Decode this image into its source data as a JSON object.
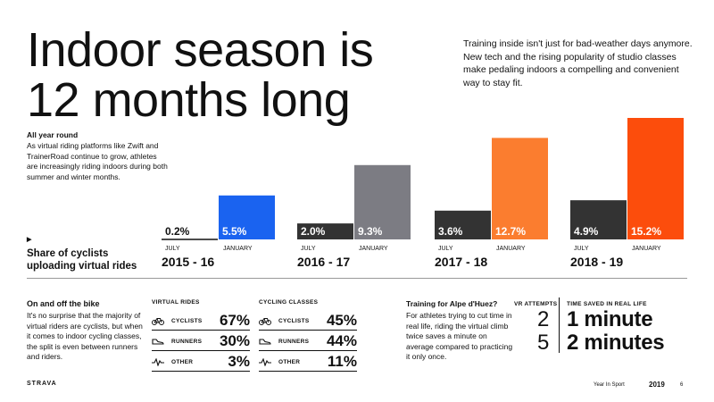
{
  "title_line1": "Indoor season is",
  "title_line2": "12 months long",
  "intro": "Training inside isn't just for bad-weather days anymore. New tech and the rising popularity of studio classes make pedaling indoors a compelling and convenient way to stay fit.",
  "all_year_heading": "All year round",
  "all_year_body": "As virtual riding platforms like Zwift and TrainerRoad continue to grow, athletes are increasingly riding indoors during both summer and winter months.",
  "share_marker": "▶",
  "share_label_line1": "Share of cyclists",
  "share_label_line2": "uploading virtual rides",
  "chart_data": {
    "type": "bar",
    "categories": [
      "2015 - 16",
      "2016 - 17",
      "2017 - 18",
      "2018 - 19"
    ],
    "bar_labels": [
      "JULY",
      "JANUARY"
    ],
    "series": [
      {
        "name": "JULY",
        "values": [
          0.2,
          2.0,
          3.6,
          4.9
        ],
        "labels": [
          "0.2%",
          "2.0%",
          "3.6%",
          "4.9%"
        ]
      },
      {
        "name": "JANUARY",
        "values": [
          5.5,
          9.3,
          12.7,
          15.2
        ],
        "labels": [
          "5.5%",
          "9.3%",
          "12.7%",
          "15.2%"
        ]
      }
    ],
    "july_colors": [
      "#ffffff",
      "#333333",
      "#333333",
      "#333333"
    ],
    "january_colors": [
      "#1a63f0",
      "#7c7c83",
      "#fb7d2f",
      "#fc4d0c"
    ],
    "ylim": [
      0,
      15.2
    ],
    "title": "",
    "xlabel": "",
    "ylabel": ""
  },
  "on_off_heading": "On and off the bike",
  "on_off_body": "It's no surprise that the majority of virtual riders are cyclists, but when it comes to indoor cycling classes, the split is even between runners and riders.",
  "virtual_rides": {
    "heading": "VIRTUAL RIDES",
    "rows": [
      {
        "label": "CYCLISTS",
        "value": "67%",
        "icon": "bicycle-icon"
      },
      {
        "label": "RUNNERS",
        "value": "30%",
        "icon": "shoe-icon"
      },
      {
        "label": "OTHER",
        "value": "3%",
        "icon": "pulse-icon"
      }
    ]
  },
  "cycling_classes": {
    "heading": "CYCLING CLASSES",
    "rows": [
      {
        "label": "CYCLISTS",
        "value": "45%",
        "icon": "bicycle-icon"
      },
      {
        "label": "RUNNERS",
        "value": "44%",
        "icon": "shoe-icon"
      },
      {
        "label": "OTHER",
        "value": "11%",
        "icon": "pulse-icon"
      }
    ]
  },
  "alpe_heading": "Training for Alpe d'Huez?",
  "alpe_body": "For athletes trying to cut time in real life, riding the virtual climb twice saves a minute on average compared to practicing it only once.",
  "vr_attempts_heading": "VR ATTEMPTS",
  "time_saved_heading": "TIME SAVED IN REAL LIFE",
  "vr_attempts": [
    "2",
    "5"
  ],
  "time_saved": [
    "1 minute",
    "2 minutes"
  ],
  "brand": "STRAVA",
  "footer_text": "Year In Sport",
  "footer_year": "2019",
  "page_number": "6"
}
